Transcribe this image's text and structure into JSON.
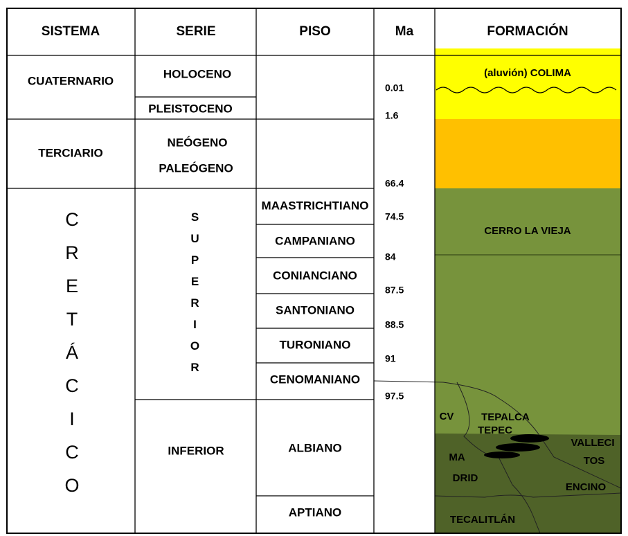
{
  "headers": [
    "SISTEMA",
    "SERIE",
    "PISO",
    "Ma",
    "FORMACIÓN"
  ],
  "sistema": [
    "CUATERNARIO",
    "TERCIARIO",
    "CRETÁCICO"
  ],
  "serie": [
    "HOLOCENO",
    "PLEISTOCENO",
    "NEÓGENO",
    "PALEÓGENO",
    "SUPERIOR",
    "INFERIOR"
  ],
  "piso": [
    "MAASTRICHTIANO",
    "CAMPANIANO",
    "CONIANCIANO",
    "SANTONIANO",
    "TURONIANO",
    "CENOMANIANO",
    "ALBIANO",
    "APTIANO"
  ],
  "ma": [
    0.01,
    1.6,
    66.4,
    74.5,
    84,
    87.5,
    88.5,
    91,
    97.5
  ],
  "formacion": [
    "(aluvión) COLIMA",
    "CERRO LA VIEJA",
    "CV",
    "TEPALCA",
    "TEPEC",
    "VALLECI",
    "TOS",
    "MA",
    "DRID",
    "ENCINO",
    "TECALITLÁN"
  ]
}
